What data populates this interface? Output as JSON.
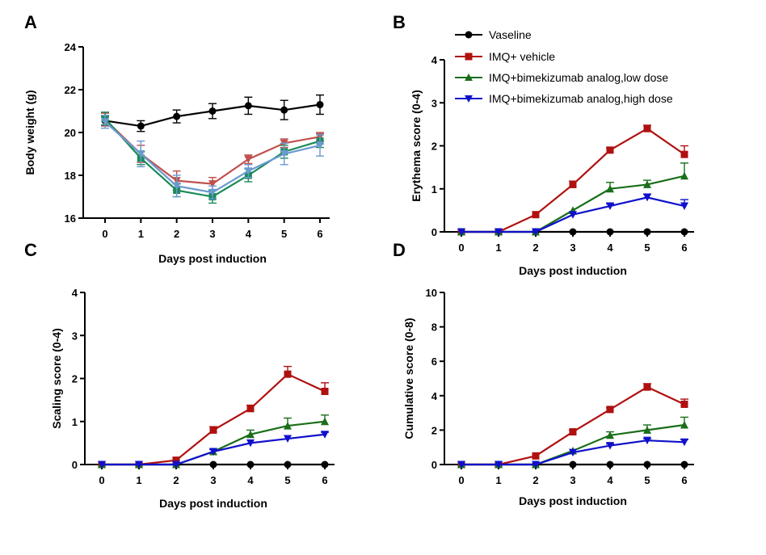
{
  "legend": {
    "entries": [
      {
        "label": "Vaseline",
        "color": "#000000",
        "marker": "circle"
      },
      {
        "label": "IMQ+ vehicle",
        "color": "#b01010",
        "marker": "square"
      },
      {
        "label": "IMQ+bimekizumab analog,low dose",
        "color": "#1a6e1a",
        "marker": "triangle-up"
      },
      {
        "label": "IMQ+bimekizumab analog,high dose",
        "color": "#1010cc",
        "marker": "triangle-down"
      }
    ]
  },
  "chart_data": [
    {
      "panel": "A",
      "type": "line",
      "x": [
        0,
        1,
        2,
        3,
        4,
        5,
        6
      ],
      "xlabel": "Days post induction",
      "ylabel": "Body weight (g)",
      "ylim": [
        16,
        24
      ],
      "yticks": [
        16,
        18,
        20,
        22,
        24
      ],
      "series": [
        {
          "values": [
            20.55,
            20.3,
            20.75,
            21.0,
            21.25,
            21.05,
            21.3
          ],
          "errors": [
            0.2,
            0.25,
            0.3,
            0.35,
            0.4,
            0.45,
            0.45
          ],
          "color": "#000000",
          "marker": "circle"
        },
        {
          "values": [
            20.6,
            19.0,
            17.75,
            17.6,
            18.75,
            19.5,
            19.8
          ],
          "errors": [
            0.3,
            0.4,
            0.45,
            0.3,
            0.2,
            0.2,
            0.2
          ],
          "color": "#c0504d",
          "marker": "triangle-down"
        },
        {
          "values": [
            20.65,
            18.8,
            17.3,
            17.0,
            18.0,
            19.1,
            19.6
          ],
          "errors": [
            0.3,
            0.3,
            0.3,
            0.3,
            0.3,
            0.3,
            0.3
          ],
          "color": "#1a8a5a",
          "marker": "square"
        },
        {
          "values": [
            20.5,
            19.0,
            17.5,
            17.2,
            18.2,
            19.0,
            19.4
          ],
          "errors": [
            0.3,
            0.6,
            0.5,
            0.3,
            0.3,
            0.5,
            0.5
          ],
          "color": "#6a9ad0",
          "marker": "triangle-down"
        }
      ]
    },
    {
      "panel": "B",
      "type": "line",
      "x": [
        0,
        1,
        2,
        3,
        4,
        5,
        6
      ],
      "xlabel": "Days post induction",
      "ylabel": "Erythema score (0-4)",
      "ylim": [
        0,
        4
      ],
      "yticks": [
        0,
        1,
        2,
        3,
        4
      ],
      "series": [
        {
          "name": "Vaseline",
          "values": [
            0,
            0,
            0,
            0,
            0,
            0,
            0
          ],
          "errors": [
            0,
            0,
            0,
            0,
            0,
            0,
            0
          ],
          "color": "#000000",
          "marker": "circle"
        },
        {
          "name": "IMQ+ vehicle",
          "values": [
            0,
            0,
            0.4,
            1.1,
            1.9,
            2.4,
            1.8
          ],
          "errors": [
            0,
            0,
            0,
            0.08,
            0.05,
            0.08,
            0.2
          ],
          "color": "#b01010",
          "marker": "square"
        },
        {
          "name": "IMQ+bimekizumab analog,low dose",
          "values": [
            0,
            0,
            0,
            0.5,
            1.0,
            1.1,
            1.3
          ],
          "errors": [
            0,
            0,
            0,
            0,
            0.15,
            0.1,
            0.3
          ],
          "color": "#1a6e1a",
          "marker": "triangle-up"
        },
        {
          "name": "IMQ+bimekizumab analog,high dose",
          "values": [
            0,
            0,
            0,
            0.4,
            0.6,
            0.8,
            0.6
          ],
          "errors": [
            0,
            0,
            0,
            0,
            0.05,
            0.08,
            0.15
          ],
          "color": "#1010cc",
          "marker": "triangle-down"
        }
      ]
    },
    {
      "panel": "C",
      "type": "line",
      "x": [
        0,
        1,
        2,
        3,
        4,
        5,
        6
      ],
      "xlabel": "Days post induction",
      "ylabel": "Scaling score (0-4)",
      "ylim": [
        0,
        4
      ],
      "yticks": [
        0,
        1,
        2,
        3,
        4
      ],
      "series": [
        {
          "name": "Vaseline",
          "values": [
            0,
            0,
            0,
            0,
            0,
            0,
            0
          ],
          "errors": [
            0,
            0,
            0,
            0,
            0,
            0,
            0
          ],
          "color": "#000000",
          "marker": "circle"
        },
        {
          "name": "IMQ+ vehicle",
          "values": [
            0,
            0,
            0.1,
            0.8,
            1.3,
            2.1,
            1.7
          ],
          "errors": [
            0,
            0,
            0,
            0.08,
            0.08,
            0.18,
            0.2
          ],
          "color": "#b01010",
          "marker": "square"
        },
        {
          "name": "IMQ+bimekizumab analog,low dose",
          "values": [
            0,
            0,
            0,
            0.3,
            0.7,
            0.9,
            1.0
          ],
          "errors": [
            0,
            0,
            0,
            0,
            0.1,
            0.18,
            0.15
          ],
          "color": "#1a6e1a",
          "marker": "triangle-up"
        },
        {
          "name": "IMQ+bimekizumab analog,high dose",
          "values": [
            0,
            0,
            0,
            0.3,
            0.5,
            0.6,
            0.7
          ],
          "errors": [
            0,
            0,
            0,
            0.05,
            0,
            0,
            0.05
          ],
          "color": "#1010cc",
          "marker": "triangle-down"
        }
      ]
    },
    {
      "panel": "D",
      "type": "line",
      "x": [
        0,
        1,
        2,
        3,
        4,
        5,
        6
      ],
      "xlabel": "Days post induction",
      "ylabel": "Cumulative score (0-8)",
      "ylim": [
        0,
        10
      ],
      "yticks": [
        0,
        2,
        4,
        6,
        8,
        10
      ],
      "series": [
        {
          "name": "Vaseline",
          "values": [
            0,
            0,
            0,
            0,
            0,
            0,
            0
          ],
          "errors": [
            0,
            0,
            0,
            0,
            0,
            0,
            0
          ],
          "color": "#000000",
          "marker": "circle"
        },
        {
          "name": "IMQ+ vehicle",
          "values": [
            0,
            0,
            0.5,
            1.9,
            3.2,
            4.5,
            3.5
          ],
          "errors": [
            0,
            0,
            0,
            0.1,
            0.1,
            0.2,
            0.3
          ],
          "color": "#b01010",
          "marker": "square"
        },
        {
          "name": "IMQ+bimekizumab analog,low dose",
          "values": [
            0,
            0,
            0,
            0.8,
            1.7,
            2.0,
            2.3
          ],
          "errors": [
            0,
            0,
            0,
            0,
            0.2,
            0.3,
            0.45
          ],
          "color": "#1a6e1a",
          "marker": "triangle-up"
        },
        {
          "name": "IMQ+bimekizumab analog,high dose",
          "values": [
            0,
            0,
            0,
            0.7,
            1.1,
            1.4,
            1.3
          ],
          "errors": [
            0,
            0,
            0,
            0,
            0.1,
            0.1,
            0.15
          ],
          "color": "#1010cc",
          "marker": "triangle-down"
        }
      ]
    }
  ]
}
